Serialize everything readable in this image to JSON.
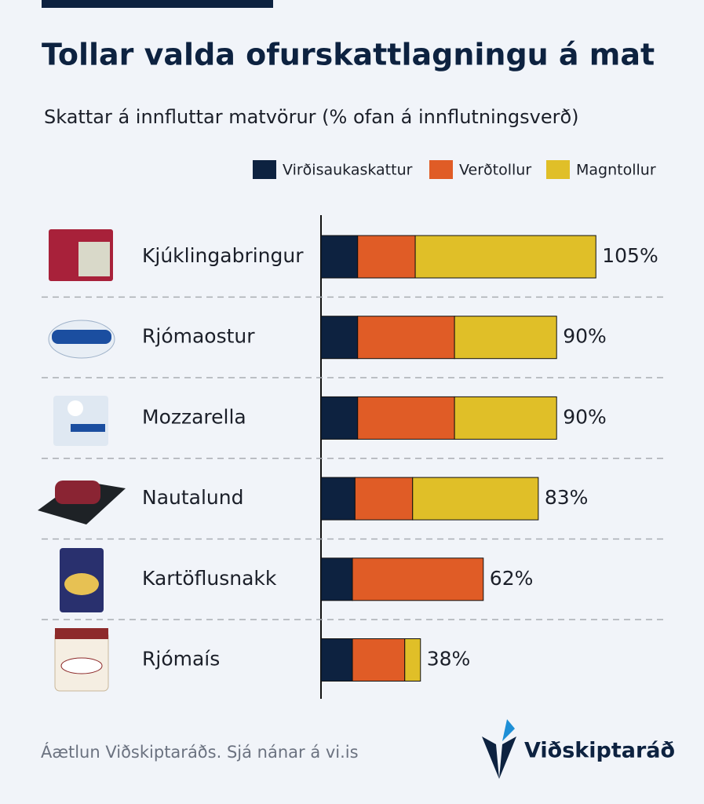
{
  "chart_data": {
    "type": "stacked-bar-horizontal",
    "title": "Tollar valda ofurskattlagningu á mat",
    "subtitle": "Skattar á innfluttar matvörur (% ofan á innflutningsverð)",
    "categories": [
      "Kjúklingabringur",
      "Rjómaostur",
      "Mozzarella",
      "Nautalund",
      "Kartöflusnakk",
      "Rjómaís"
    ],
    "series": [
      {
        "name": "Virðisaukaskattur",
        "color": "#0d2240",
        "values": [
          14,
          14,
          14,
          13,
          12,
          12
        ]
      },
      {
        "name": "Verðtollur",
        "color": "#e05c26",
        "values": [
          22,
          37,
          37,
          22,
          50,
          20
        ]
      },
      {
        "name": "Magntollur",
        "color": "#e0bf28",
        "values": [
          69,
          39,
          39,
          48,
          null,
          6
        ]
      }
    ],
    "totals": [
      105,
      90,
      90,
      83,
      62,
      38
    ],
    "total_labels": [
      "105%",
      "90%",
      "90%",
      "83%",
      "62%",
      "38%"
    ],
    "xlim": [
      0,
      146
    ],
    "legend": "top-right"
  },
  "footer": {
    "source": "Áætlun Viðskiptaráðs. Sjá nánar á vi.is",
    "logo": "Viðskiptaráð"
  }
}
